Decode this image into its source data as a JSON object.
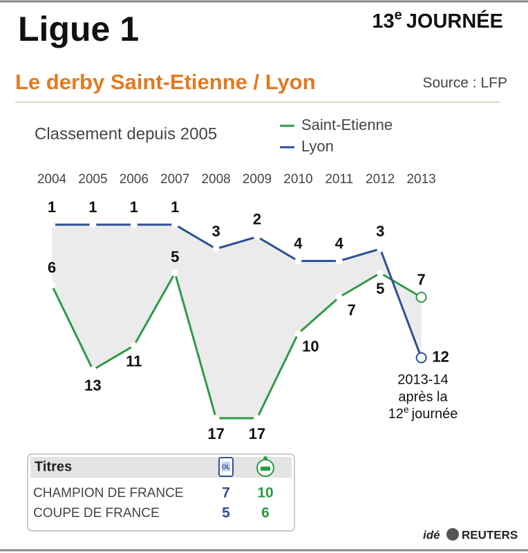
{
  "chart_data": {
    "type": "line",
    "title": "Classement depuis 2005",
    "categories": [
      "2004",
      "2005",
      "2006",
      "2007",
      "2008",
      "2009",
      "2010",
      "2011",
      "2012",
      "2013"
    ],
    "series": [
      {
        "name": "Saint-Etienne",
        "color": "#2e9a44",
        "values": [
          6,
          13,
          11,
          5,
          17,
          17,
          10,
          7,
          5,
          7
        ]
      },
      {
        "name": "Lyon",
        "color": "#2c4f96",
        "values": [
          1,
          1,
          1,
          1,
          3,
          2,
          4,
          4,
          3,
          12
        ]
      }
    ],
    "ylim": [
      1,
      17
    ],
    "y_inverted": true,
    "annotation": [
      {
        "text": "2013-14"
      },
      {
        "text": "après la"
      },
      {
        "number": "12",
        "sup": "e",
        "rest": "journée"
      }
    ]
  },
  "header": {
    "title": "Ligue 1",
    "round": {
      "number": "13",
      "sup": "e",
      "rest": "JOURNÉE"
    },
    "subtitle": "Le derby Saint-Etienne / Lyon",
    "source": "Source : LFP"
  },
  "table": {
    "header": "Titres",
    "rows": [
      [
        "CHAMPION DE FRANCE",
        "7",
        "10"
      ],
      [
        "COUPE DE FRANCE",
        "5",
        "6"
      ]
    ]
  },
  "footer": {
    "agency1": "idé",
    "agency2": "REUTERS"
  }
}
